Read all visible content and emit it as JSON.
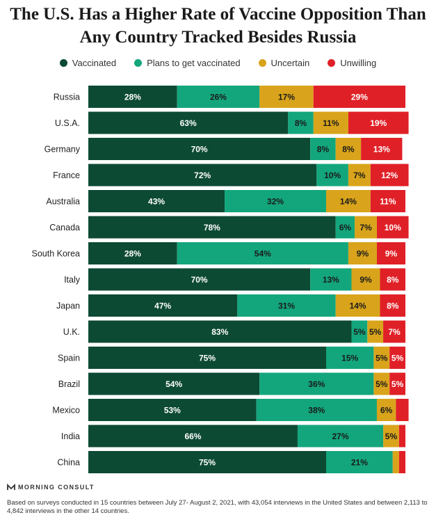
{
  "chart_data": {
    "type": "bar",
    "orientation": "horizontal",
    "stacked": true,
    "title": "The U.S. Has a Higher Rate of Vaccine Opposition Than Any Country Tracked Besides Russia",
    "categories": [
      "Russia",
      "U.S.A.",
      "Germany",
      "France",
      "Australia",
      "Canada",
      "South Korea",
      "Italy",
      "Japan",
      "U.K.",
      "Spain",
      "Brazil",
      "Mexico",
      "India",
      "China"
    ],
    "series": [
      {
        "name": "Vaccinated",
        "color": "#0d4a34",
        "values": [
          28,
          63,
          70,
          72,
          43,
          78,
          28,
          70,
          47,
          83,
          75,
          54,
          53,
          66,
          75
        ]
      },
      {
        "name": "Plans to get vaccinated",
        "color": "#13a67c",
        "values": [
          26,
          8,
          8,
          10,
          32,
          6,
          54,
          13,
          31,
          5,
          15,
          36,
          38,
          27,
          21
        ]
      },
      {
        "name": "Uncertain",
        "color": "#d9a41b",
        "values": [
          17,
          11,
          8,
          7,
          14,
          7,
          9,
          9,
          14,
          5,
          5,
          5,
          6,
          5,
          2
        ]
      },
      {
        "name": "Unwilling",
        "color": "#e02027",
        "values": [
          29,
          19,
          13,
          12,
          11,
          10,
          9,
          8,
          8,
          7,
          5,
          5,
          4,
          2,
          2
        ]
      }
    ],
    "labels": [
      [
        "28%",
        "26%",
        "17%",
        "29%"
      ],
      [
        "63%",
        "8%",
        "11%",
        "19%"
      ],
      [
        "70%",
        "8%",
        "8%",
        "13%"
      ],
      [
        "72%",
        "10%",
        "7%",
        "12%"
      ],
      [
        "43%",
        "32%",
        "14%",
        "11%"
      ],
      [
        "78%",
        "6%",
        "7%",
        "10%"
      ],
      [
        "28%",
        "54%",
        "9%",
        "9%"
      ],
      [
        "70%",
        "13%",
        "9%",
        "8%"
      ],
      [
        "47%",
        "31%",
        "14%",
        "8%"
      ],
      [
        "83%",
        "5%",
        "5%",
        "7%"
      ],
      [
        "75%",
        "15%",
        "5%",
        "5%"
      ],
      [
        "54%",
        "36%",
        "5%",
        "5%"
      ],
      [
        "53%",
        "38%",
        "6%",
        ""
      ],
      [
        "66%",
        "27%",
        "5%",
        ""
      ],
      [
        "75%",
        "21%",
        "",
        ""
      ]
    ],
    "xlim": [
      0,
      100
    ],
    "legend": "top"
  },
  "brand": "MORNING CONSULT",
  "footnote": "Based on surveys conducted in 15 countries between July 27- August 2, 2021, with 43,054 interviews in the United States and between 2,113 to 4,842 interviews in the other 14 countries."
}
